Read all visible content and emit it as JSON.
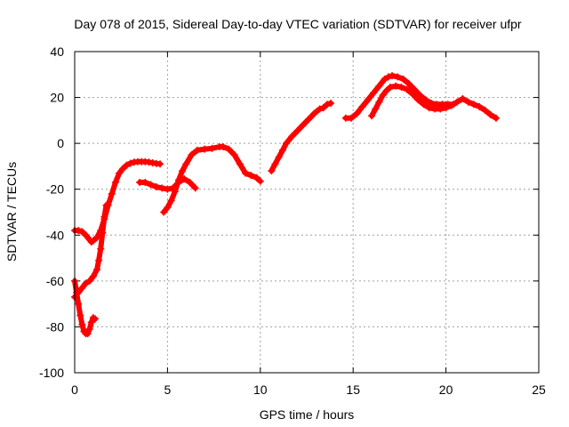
{
  "chart_data": {
    "type": "scatter",
    "title": "Day 078 of 2015, Sidereal Day-to-day VTEC variation (SDTVAR) for receiver ufpr",
    "xlabel": "GPS time / hours",
    "ylabel": "SDTVAR / TECUs",
    "xlim": [
      0,
      25
    ],
    "ylim": [
      -100,
      40
    ],
    "xticks": [
      0,
      5,
      10,
      15,
      20,
      25
    ],
    "yticks": [
      -100,
      -80,
      -60,
      -40,
      -20,
      0,
      20,
      40
    ],
    "grid": true,
    "marker": "plus",
    "color": "#ff0000",
    "series": [
      {
        "values": [
          [
            0.0,
            -38
          ],
          [
            0.2,
            -38
          ],
          [
            0.4,
            -38.5
          ],
          [
            0.6,
            -40
          ],
          [
            0.8,
            -42
          ],
          [
            0.9,
            -43
          ],
          [
            1.0,
            -42.5
          ],
          [
            1.2,
            -41
          ],
          [
            1.4,
            -38
          ],
          [
            1.6,
            -33
          ],
          [
            1.8,
            -27
          ],
          [
            2.0,
            -22
          ],
          [
            2.2,
            -17
          ],
          [
            2.4,
            -13
          ],
          [
            2.6,
            -11
          ],
          [
            2.8,
            -9.5
          ],
          [
            3.0,
            -8.7
          ],
          [
            3.2,
            -8.2
          ],
          [
            3.4,
            -8
          ],
          [
            3.6,
            -8
          ],
          [
            3.8,
            -8
          ],
          [
            4.0,
            -8.2
          ],
          [
            4.2,
            -8.5
          ],
          [
            4.4,
            -8.8
          ],
          [
            4.6,
            -9
          ]
        ]
      },
      {
        "values": [
          [
            0.0,
            -60
          ],
          [
            0.1,
            -65
          ],
          [
            0.2,
            -70
          ],
          [
            0.3,
            -75
          ],
          [
            0.4,
            -79
          ],
          [
            0.5,
            -82
          ],
          [
            0.6,
            -83
          ],
          [
            0.7,
            -83
          ],
          [
            0.8,
            -81
          ],
          [
            0.9,
            -78
          ],
          [
            1.0,
            -76
          ],
          [
            1.1,
            -76.5
          ]
        ]
      },
      {
        "values": [
          [
            0.0,
            -67
          ],
          [
            0.2,
            -65
          ],
          [
            0.4,
            -63
          ],
          [
            0.6,
            -61
          ],
          [
            0.8,
            -60
          ],
          [
            1.0,
            -58
          ],
          [
            1.2,
            -55
          ],
          [
            1.3,
            -51
          ],
          [
            1.4,
            -46
          ],
          [
            1.5,
            -39
          ],
          [
            1.6,
            -32
          ],
          [
            1.7,
            -27
          ]
        ]
      },
      {
        "values": [
          [
            3.5,
            -17
          ],
          [
            3.8,
            -17
          ],
          [
            4.1,
            -18
          ],
          [
            4.4,
            -19
          ],
          [
            4.7,
            -19.5
          ],
          [
            5.0,
            -20
          ],
          [
            5.3,
            -19.5
          ],
          [
            5.6,
            -17
          ],
          [
            5.9,
            -15.5
          ],
          [
            6.2,
            -17
          ],
          [
            6.5,
            -19.5
          ]
        ]
      },
      {
        "values": [
          [
            4.8,
            -30
          ],
          [
            5.0,
            -28
          ],
          [
            5.2,
            -25
          ],
          [
            5.4,
            -21
          ],
          [
            5.6,
            -16
          ],
          [
            5.8,
            -12
          ],
          [
            6.0,
            -9
          ],
          [
            6.3,
            -5
          ],
          [
            6.6,
            -3
          ],
          [
            7.0,
            -2.5
          ],
          [
            7.4,
            -2.2
          ],
          [
            7.8,
            -1.5
          ],
          [
            8.0,
            -1.5
          ],
          [
            8.3,
            -2.5
          ],
          [
            8.6,
            -5
          ],
          [
            8.9,
            -9
          ],
          [
            9.2,
            -13
          ],
          [
            9.5,
            -14
          ],
          [
            9.8,
            -15
          ],
          [
            10.0,
            -16.5
          ]
        ]
      },
      {
        "values": [
          [
            10.6,
            -12
          ],
          [
            10.8,
            -9
          ],
          [
            11.0,
            -6
          ],
          [
            11.2,
            -3
          ],
          [
            11.4,
            0
          ],
          [
            11.7,
            3
          ],
          [
            12.0,
            5.5
          ],
          [
            12.3,
            8
          ],
          [
            12.6,
            10.5
          ],
          [
            12.9,
            13
          ],
          [
            13.2,
            15
          ],
          [
            13.4,
            15.5
          ],
          [
            13.6,
            17
          ],
          [
            13.8,
            17.5
          ]
        ]
      },
      {
        "values": [
          [
            14.6,
            11
          ],
          [
            14.9,
            11
          ],
          [
            15.2,
            13
          ],
          [
            15.5,
            16
          ],
          [
            15.8,
            19
          ],
          [
            16.1,
            22
          ],
          [
            16.4,
            25
          ],
          [
            16.7,
            28
          ],
          [
            16.9,
            29
          ],
          [
            17.1,
            29.5
          ],
          [
            17.4,
            29
          ],
          [
            17.7,
            28
          ],
          [
            18.0,
            26
          ],
          [
            18.3,
            23.5
          ],
          [
            18.6,
            21
          ],
          [
            18.9,
            19
          ],
          [
            19.2,
            17.5
          ],
          [
            19.5,
            17
          ],
          [
            19.8,
            17
          ],
          [
            20.1,
            17
          ],
          [
            20.4,
            17
          ]
        ]
      },
      {
        "values": [
          [
            16.0,
            12
          ],
          [
            16.2,
            15
          ],
          [
            16.4,
            18
          ],
          [
            16.6,
            21
          ],
          [
            16.8,
            23
          ],
          [
            17.0,
            24.5
          ],
          [
            17.3,
            25
          ],
          [
            17.6,
            24.5
          ],
          [
            17.9,
            23.5
          ],
          [
            18.2,
            21.5
          ],
          [
            18.5,
            19
          ],
          [
            18.8,
            17
          ],
          [
            19.1,
            15.5
          ],
          [
            19.4,
            15
          ],
          [
            19.7,
            15
          ],
          [
            20.0,
            15.5
          ],
          [
            20.3,
            16.5
          ],
          [
            20.6,
            18
          ],
          [
            20.9,
            19.5
          ],
          [
            21.2,
            18
          ],
          [
            21.5,
            17
          ],
          [
            21.8,
            16
          ],
          [
            22.1,
            14.5
          ],
          [
            22.4,
            12.5
          ],
          [
            22.7,
            11
          ]
        ]
      }
    ]
  }
}
